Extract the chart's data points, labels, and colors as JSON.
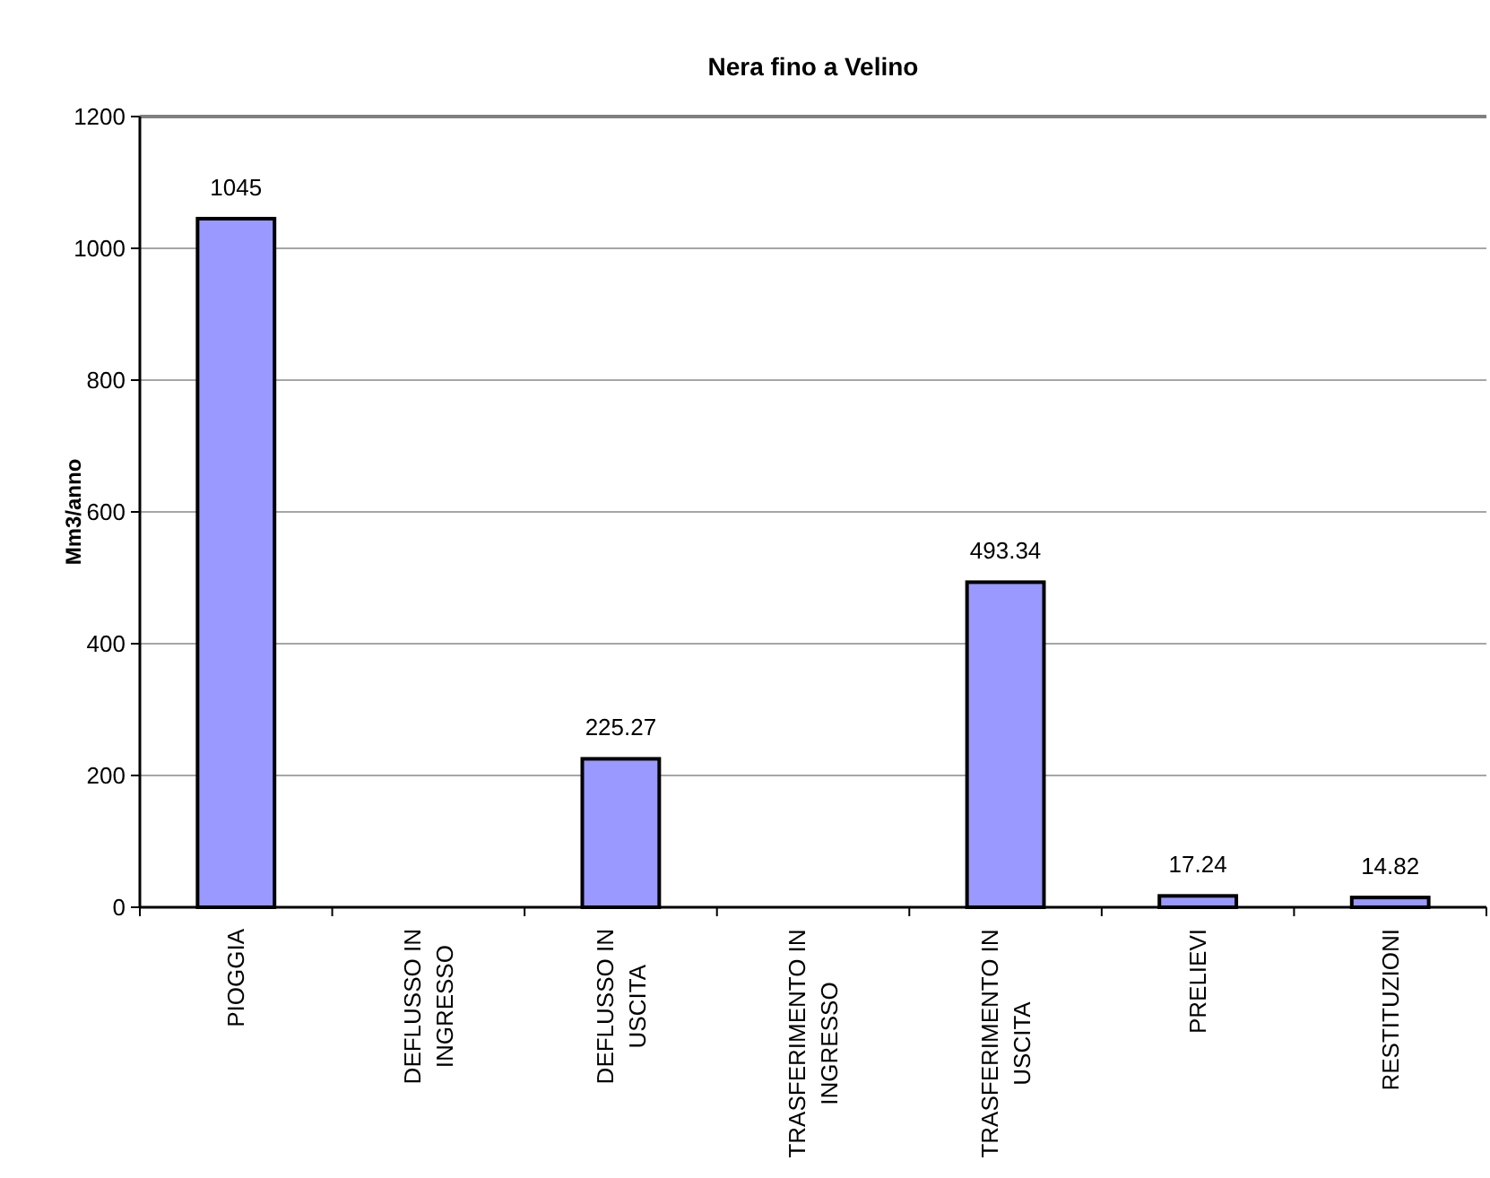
{
  "chart_data": {
    "type": "bar",
    "title": "Nera fino a Velino",
    "ylabel": "Mm3/anno",
    "categories": [
      "PIOGGIA",
      "DEFLUSSO IN INGRESSO",
      "DEFLUSSO IN USCITA",
      "TRASFERIMENTO IN INGRESSO",
      "TRASFERIMENTO IN USCITA",
      "PRELIEVI",
      "RESTITUZIONI"
    ],
    "values": [
      1045,
      null,
      225.27,
      null,
      493.34,
      17.24,
      14.82
    ],
    "color": "#9999ff",
    "ylim": [
      0,
      1200
    ],
    "yticks": [
      0,
      200,
      400,
      600,
      800,
      1000,
      1200
    ],
    "grid": "y",
    "data_labels": true
  }
}
